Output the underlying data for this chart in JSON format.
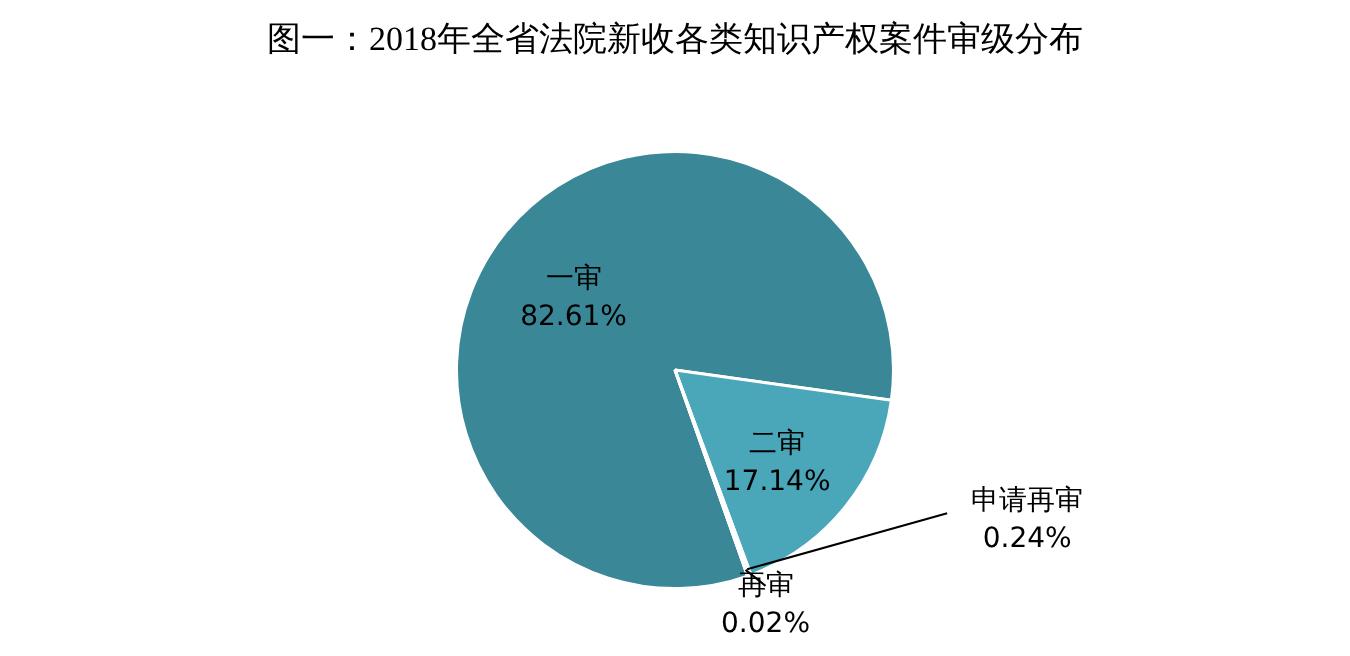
{
  "chart_data": {
    "type": "pie",
    "title": "图一：2018年全省法院新收各类知识产权案件审级分布",
    "categories": [
      "一审",
      "二审",
      "申请再审",
      "再审"
    ],
    "values": [
      82.61,
      17.14,
      0.24,
      0.02
    ],
    "value_labels": [
      "82.61%",
      "17.14%",
      "0.24%",
      "0.02%"
    ],
    "colors": [
      "#3a8797",
      "#4aa6b9",
      "#3f97a8",
      "#3a8797"
    ],
    "legend": false
  }
}
